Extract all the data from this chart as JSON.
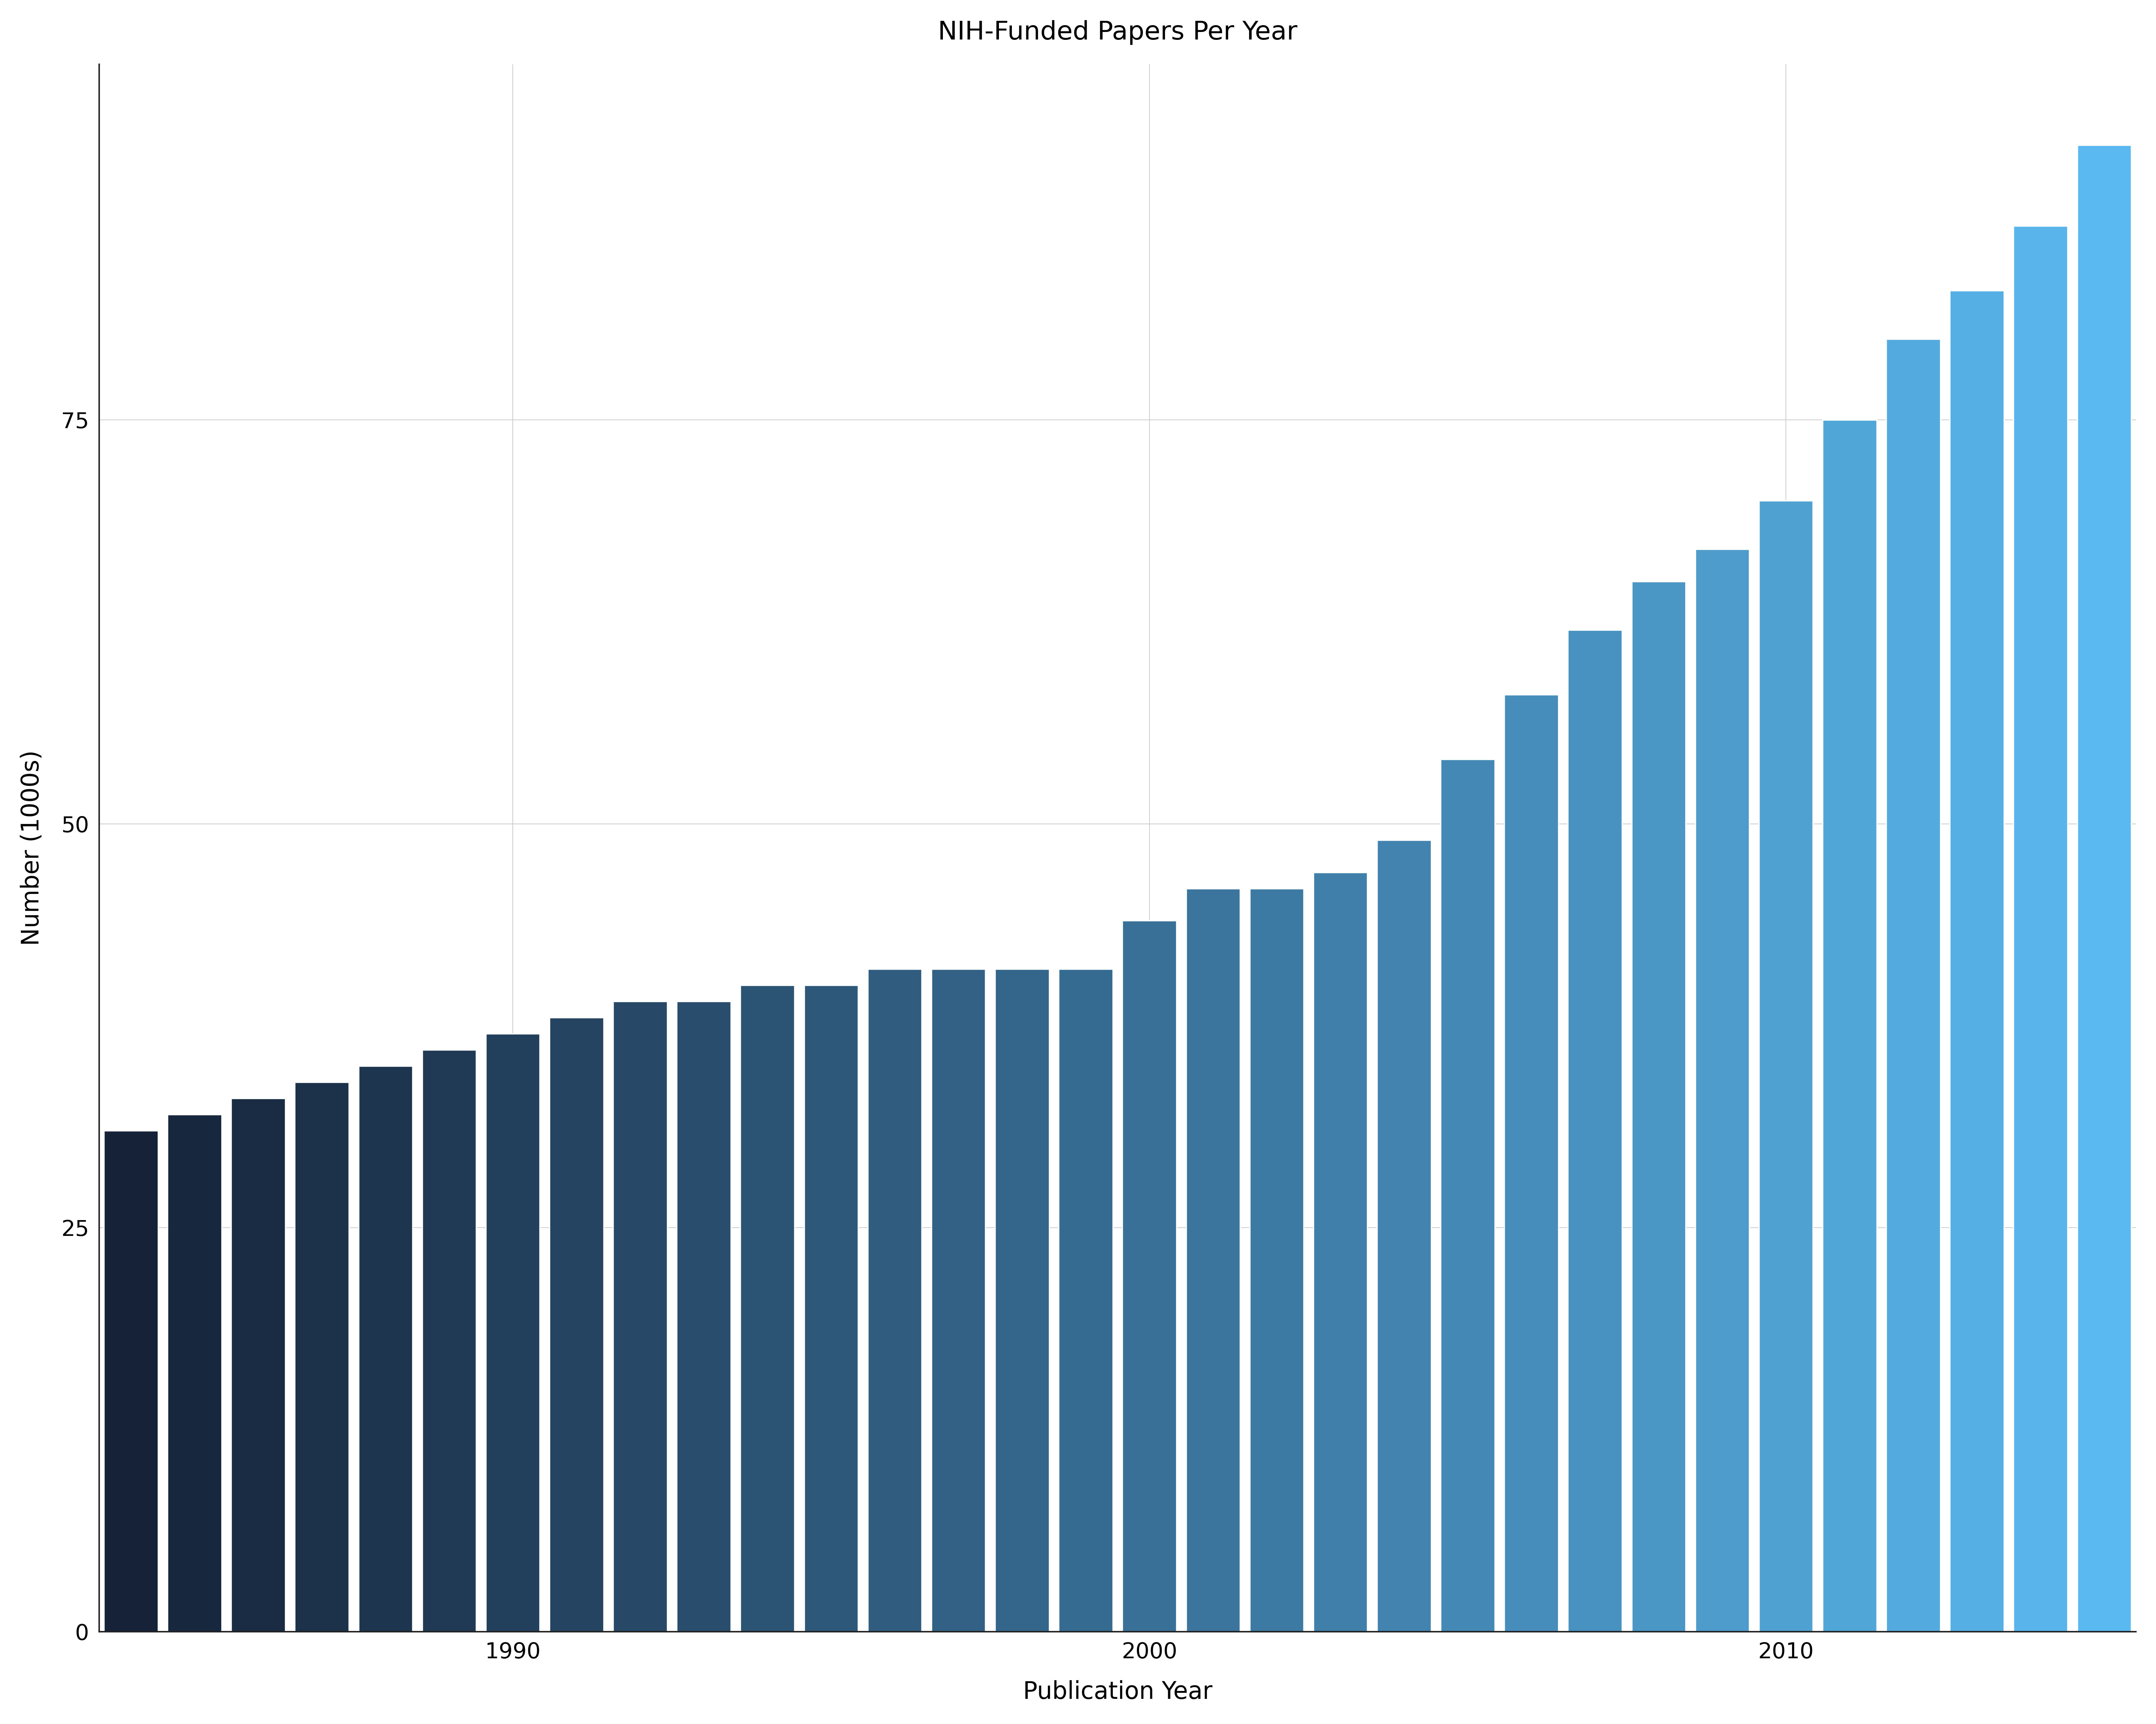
{
  "title": "NIH-Funded Papers Per Year",
  "xlabel": "Publication Year",
  "ylabel": "Number (1000s)",
  "years": [
    1984,
    1985,
    1986,
    1987,
    1988,
    1989,
    1990,
    1991,
    1992,
    1993,
    1994,
    1995,
    1996,
    1997,
    1998,
    1999,
    2000,
    2001,
    2002,
    2003,
    2004,
    2005,
    2006,
    2007,
    2008,
    2009,
    2010,
    2011,
    2012,
    2013,
    2014,
    2015
  ],
  "values": [
    31,
    32,
    33,
    34,
    35,
    36,
    37,
    38,
    39,
    39,
    40,
    40,
    41,
    41,
    41,
    41,
    44,
    46,
    46,
    47,
    49,
    54,
    58,
    62,
    65,
    67,
    70,
    75,
    80,
    83,
    87,
    92
  ],
  "color_start": "#152238",
  "color_end": "#5ab9f0",
  "ylim": [
    0,
    97
  ],
  "yticks": [
    0,
    25,
    50,
    75
  ],
  "xticks": [
    1990,
    2000,
    2010
  ],
  "xtick_labels": [
    "1990",
    "2000",
    "2010"
  ],
  "background_color": "#ffffff",
  "grid_color": "#cccccc",
  "bar_edge_color": "#ffffff",
  "spine_color": "#222222",
  "title_fontsize": 52,
  "axis_label_fontsize": 48,
  "tick_fontsize": 44,
  "bar_width": 0.85,
  "bar_linewidth": 2.5,
  "spine_linewidth": 3,
  "grid_linewidth": 1.5
}
